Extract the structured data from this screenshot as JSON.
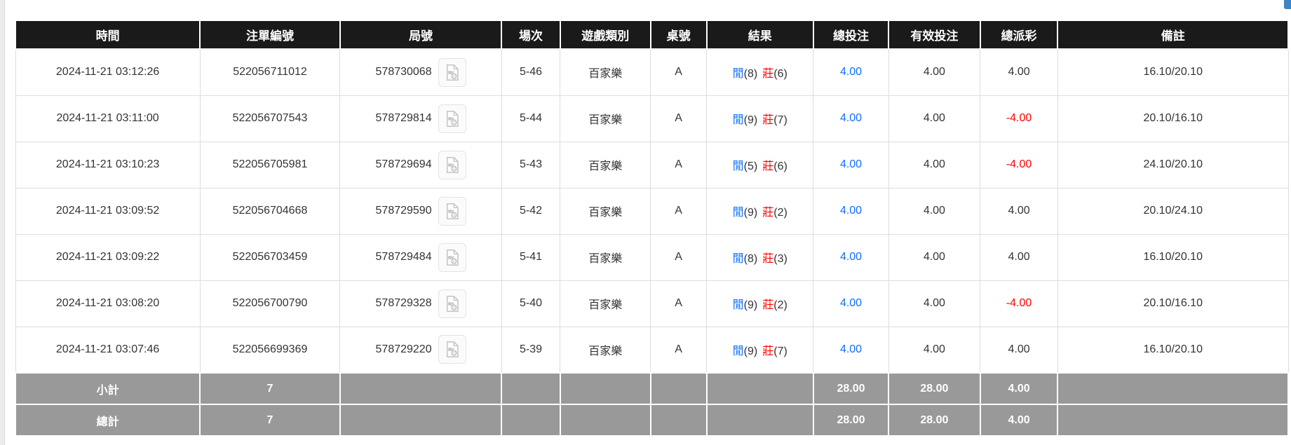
{
  "page": {
    "corner_button": {
      "color": "#3d85c6"
    }
  },
  "colors": {
    "header_bg": "#1a1a1a",
    "footer_bg": "#999999",
    "player_blue": "#0d6efd",
    "banker_red": "#ff0000",
    "total_bet_blue": "#0d6efd",
    "negative_payout_red": "#ff0000"
  },
  "table": {
    "columns": [
      {
        "label": "時間"
      },
      {
        "label": "注單編號"
      },
      {
        "label": "局號"
      },
      {
        "label": "場次"
      },
      {
        "label": "遊戲類別"
      },
      {
        "label": "桌號"
      },
      {
        "label": "結果"
      },
      {
        "label": "總投注"
      },
      {
        "label": "有效投注"
      },
      {
        "label": "總派彩"
      },
      {
        "label": "備註"
      }
    ],
    "video_icon": "video-file-icon",
    "rows": [
      {
        "time": "2024-11-21 03:12:26",
        "bet_id": "522056711012",
        "round_id": "578730068",
        "session": "5-46",
        "game": "百家樂",
        "table_no": "A",
        "result": {
          "player": "閒",
          "player_pts": "(8)",
          "banker": "莊",
          "banker_pts": "(6)"
        },
        "total_bet": "4.00",
        "valid_bet": "4.00",
        "payout": "4.00",
        "remark": "16.10/20.10"
      },
      {
        "time": "2024-11-21 03:11:00",
        "bet_id": "522056707543",
        "round_id": "578729814",
        "session": "5-44",
        "game": "百家樂",
        "table_no": "A",
        "result": {
          "player": "閒",
          "player_pts": "(9)",
          "banker": "莊",
          "banker_pts": "(7)"
        },
        "total_bet": "4.00",
        "valid_bet": "4.00",
        "payout": "-4.00",
        "remark": "20.10/16.10"
      },
      {
        "time": "2024-11-21 03:10:23",
        "bet_id": "522056705981",
        "round_id": "578729694",
        "session": "5-43",
        "game": "百家樂",
        "table_no": "A",
        "result": {
          "player": "閒",
          "player_pts": "(5)",
          "banker": "莊",
          "banker_pts": "(6)"
        },
        "total_bet": "4.00",
        "valid_bet": "4.00",
        "payout": "-4.00",
        "remark": "24.10/20.10"
      },
      {
        "time": "2024-11-21 03:09:52",
        "bet_id": "522056704668",
        "round_id": "578729590",
        "session": "5-42",
        "game": "百家樂",
        "table_no": "A",
        "result": {
          "player": "閒",
          "player_pts": "(9)",
          "banker": "莊",
          "banker_pts": "(2)"
        },
        "total_bet": "4.00",
        "valid_bet": "4.00",
        "payout": "4.00",
        "remark": "20.10/24.10"
      },
      {
        "time": "2024-11-21 03:09:22",
        "bet_id": "522056703459",
        "round_id": "578729484",
        "session": "5-41",
        "game": "百家樂",
        "table_no": "A",
        "result": {
          "player": "閒",
          "player_pts": "(8)",
          "banker": "莊",
          "banker_pts": "(3)"
        },
        "total_bet": "4.00",
        "valid_bet": "4.00",
        "payout": "4.00",
        "remark": "16.10/20.10"
      },
      {
        "time": "2024-11-21 03:08:20",
        "bet_id": "522056700790",
        "round_id": "578729328",
        "session": "5-40",
        "game": "百家樂",
        "table_no": "A",
        "result": {
          "player": "閒",
          "player_pts": "(9)",
          "banker": "莊",
          "banker_pts": "(2)"
        },
        "total_bet": "4.00",
        "valid_bet": "4.00",
        "payout": "-4.00",
        "remark": "20.10/16.10"
      },
      {
        "time": "2024-11-21 03:07:46",
        "bet_id": "522056699369",
        "round_id": "578729220",
        "session": "5-39",
        "game": "百家樂",
        "table_no": "A",
        "result": {
          "player": "閒",
          "player_pts": "(9)",
          "banker": "莊",
          "banker_pts": "(7)"
        },
        "total_bet": "4.00",
        "valid_bet": "4.00",
        "payout": "4.00",
        "remark": "16.10/20.10"
      }
    ],
    "footer_rows": [
      {
        "label": "小計",
        "bet_count": "7",
        "total_bet": "28.00",
        "valid_bet": "28.00",
        "payout": "4.00"
      },
      {
        "label": "總計",
        "bet_count": "7",
        "total_bet": "28.00",
        "valid_bet": "28.00",
        "payout": "4.00"
      }
    ]
  }
}
